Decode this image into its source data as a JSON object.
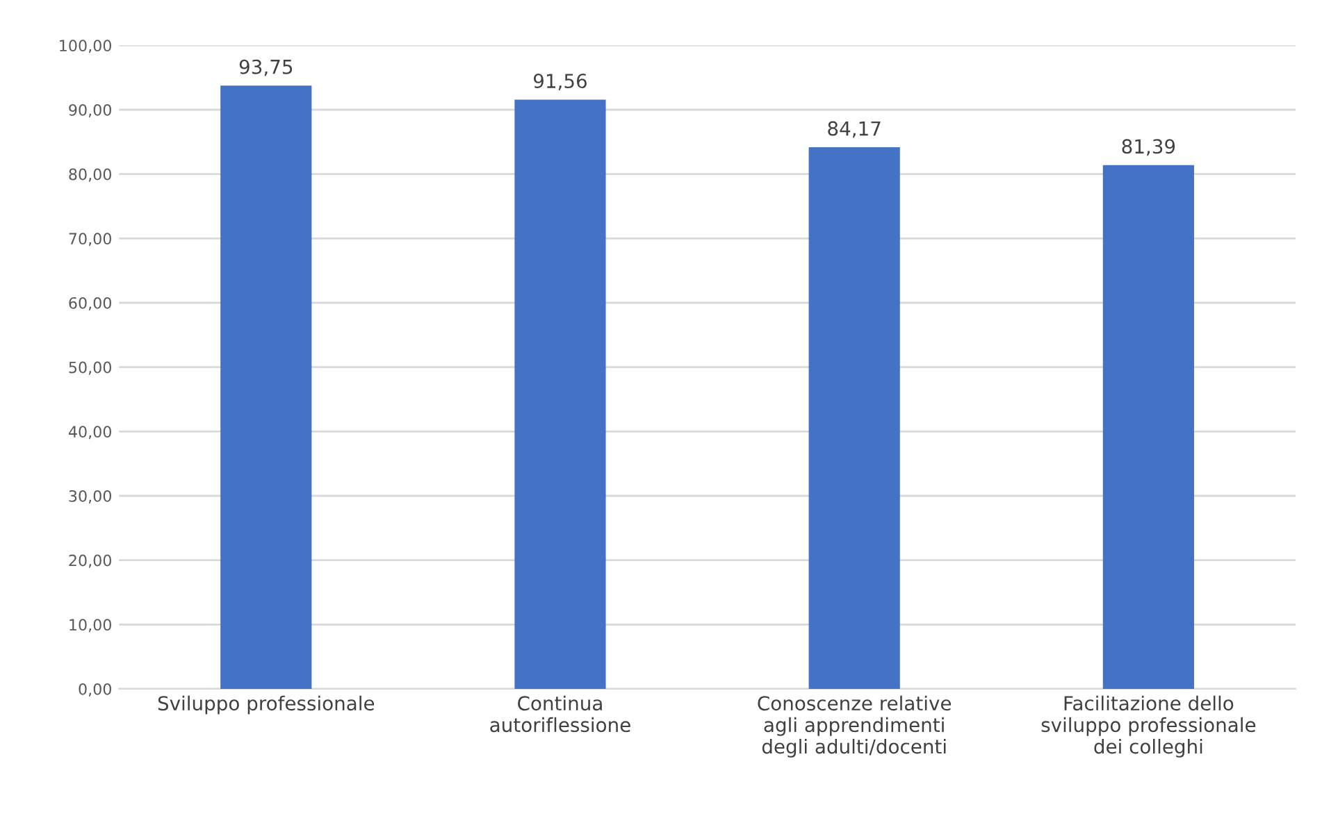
{
  "chart_data": {
    "type": "bar",
    "categories": [
      "Sviluppo professionale",
      "Continua\nautoriflessione",
      "Conoscenze relative\nagli apprendimenti\ndegli adulti/docenti",
      "Facilitazione dello\nsviluppo professionale\ndei colleghi"
    ],
    "values": [
      93.75,
      91.56,
      84.17,
      81.39
    ],
    "value_labels": [
      "93,75",
      "91,56",
      "84,17",
      "81,39"
    ],
    "color": "#4472c4",
    "ylim": [
      0,
      100
    ],
    "yticks": [
      {
        "value": 0,
        "label": "0,00"
      },
      {
        "value": 10,
        "label": "10,00"
      },
      {
        "value": 20,
        "label": "20,00"
      },
      {
        "value": 30,
        "label": "30,00"
      },
      {
        "value": 40,
        "label": "40,00"
      },
      {
        "value": 50,
        "label": "50,00"
      },
      {
        "value": 60,
        "label": "60,00"
      },
      {
        "value": 70,
        "label": "70,00"
      },
      {
        "value": 80,
        "label": "80,00"
      },
      {
        "value": 90,
        "label": "90,00"
      },
      {
        "value": 100,
        "label": "100,00"
      }
    ],
    "grid": "y"
  }
}
